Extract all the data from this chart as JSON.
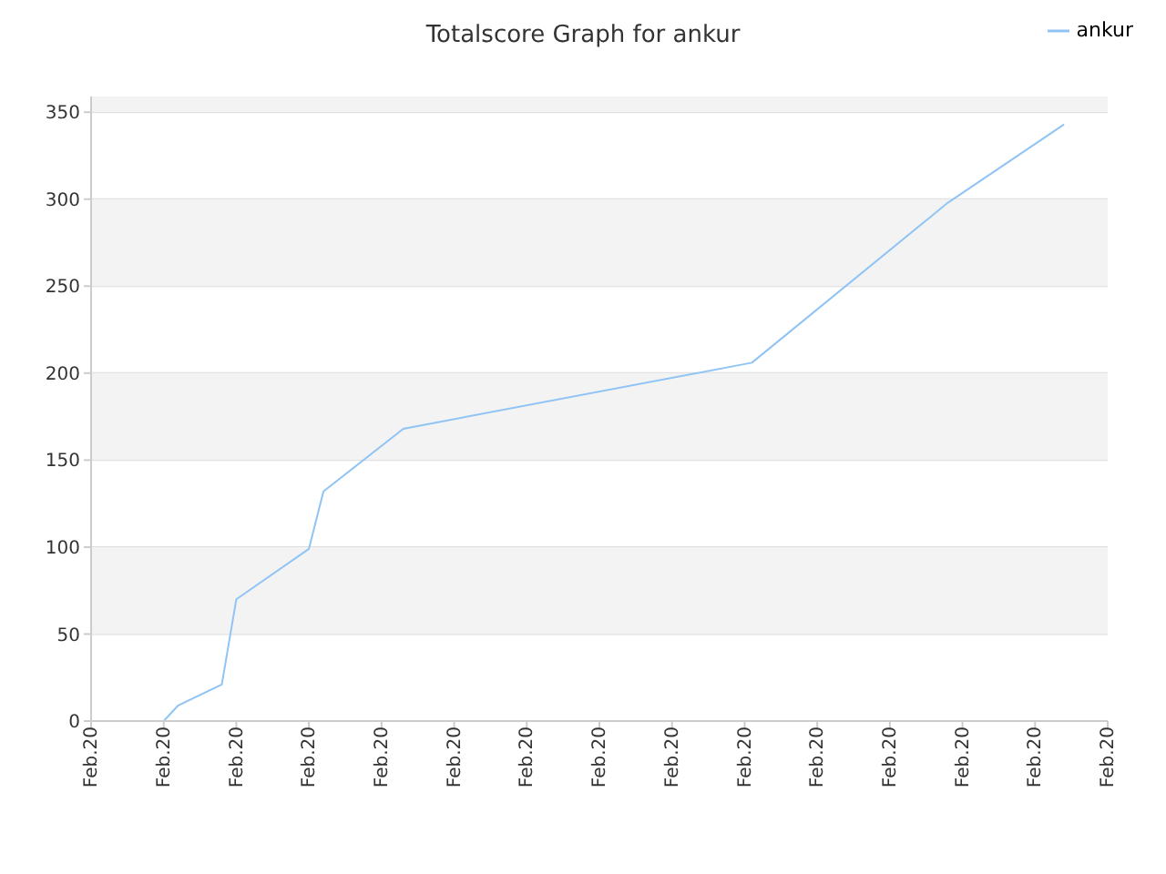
{
  "chart_data": {
    "type": "line",
    "title": "Totalscore Graph for ankur",
    "categories": [
      "Feb.20",
      null,
      null,
      null,
      null,
      null,
      null,
      null,
      null,
      null,
      "Feb.20",
      null,
      null,
      null,
      null,
      null,
      null,
      null,
      null,
      null,
      "Feb.20",
      null,
      null,
      null,
      null,
      null,
      null,
      null,
      null,
      null,
      "Feb.20",
      null,
      null,
      null,
      null,
      null,
      null,
      null,
      null,
      null,
      "Feb.20",
      null,
      null,
      null,
      null,
      null,
      null,
      null,
      null,
      null,
      "Feb.20",
      null,
      null,
      null,
      null,
      null,
      null,
      null,
      null,
      null,
      "Feb.20",
      null,
      null,
      null,
      null,
      null,
      null,
      null,
      null,
      null,
      "Feb.20",
      null,
      null,
      null,
      null,
      null,
      null,
      null,
      null,
      null,
      "Feb.20",
      null,
      null,
      null,
      null,
      null,
      null,
      null,
      null,
      null,
      "Feb.20",
      null,
      null,
      null,
      null,
      null,
      null,
      null,
      null,
      null,
      "Feb.20",
      null,
      null,
      null,
      null,
      null,
      null,
      null,
      null,
      null,
      "Feb.20",
      null,
      null,
      null,
      null,
      null,
      null,
      null,
      null,
      null,
      "Feb.20",
      null,
      null,
      null,
      null,
      null,
      null,
      null,
      null,
      null,
      "Feb.20",
      null,
      null,
      null,
      null,
      null,
      null,
      null,
      null,
      null,
      "Feb.20"
    ],
    "series": [
      {
        "name": "ankur",
        "color": "#90c4f4",
        "values": [
          null,
          null,
          null,
          null,
          null,
          null,
          null,
          null,
          0,
          null,
          0,
          null,
          9,
          null,
          null,
          null,
          null,
          null,
          21,
          null,
          70,
          null,
          null,
          null,
          null,
          null,
          null,
          null,
          null,
          null,
          99,
          null,
          132,
          null,
          null,
          null,
          null,
          null,
          null,
          null,
          null,
          null,
          null,
          168,
          null,
          null,
          null,
          null,
          null,
          null,
          null,
          null,
          null,
          null,
          null,
          null,
          null,
          null,
          null,
          null,
          null,
          null,
          null,
          null,
          null,
          null,
          null,
          null,
          null,
          null,
          null,
          null,
          null,
          null,
          null,
          null,
          null,
          null,
          null,
          null,
          null,
          null,
          null,
          null,
          null,
          null,
          null,
          null,
          null,
          null,
          null,
          206,
          null,
          null,
          null,
          null,
          null,
          null,
          null,
          null,
          null,
          null,
          null,
          null,
          null,
          null,
          null,
          null,
          null,
          null,
          null,
          null,
          null,
          null,
          null,
          null,
          null,
          null,
          298,
          null,
          null,
          null,
          null,
          null,
          null,
          null,
          null,
          null,
          null,
          null,
          null,
          null,
          null,
          null,
          343,
          null,
          null,
          null,
          null,
          null,
          null
        ]
      }
    ],
    "ylim": [
      0,
      359
    ],
    "yticks": [
      0,
      50,
      100,
      150,
      200,
      250,
      300,
      350
    ],
    "grid": "y",
    "legend": "top right",
    "marker": "none",
    "line_style": "solid"
  }
}
